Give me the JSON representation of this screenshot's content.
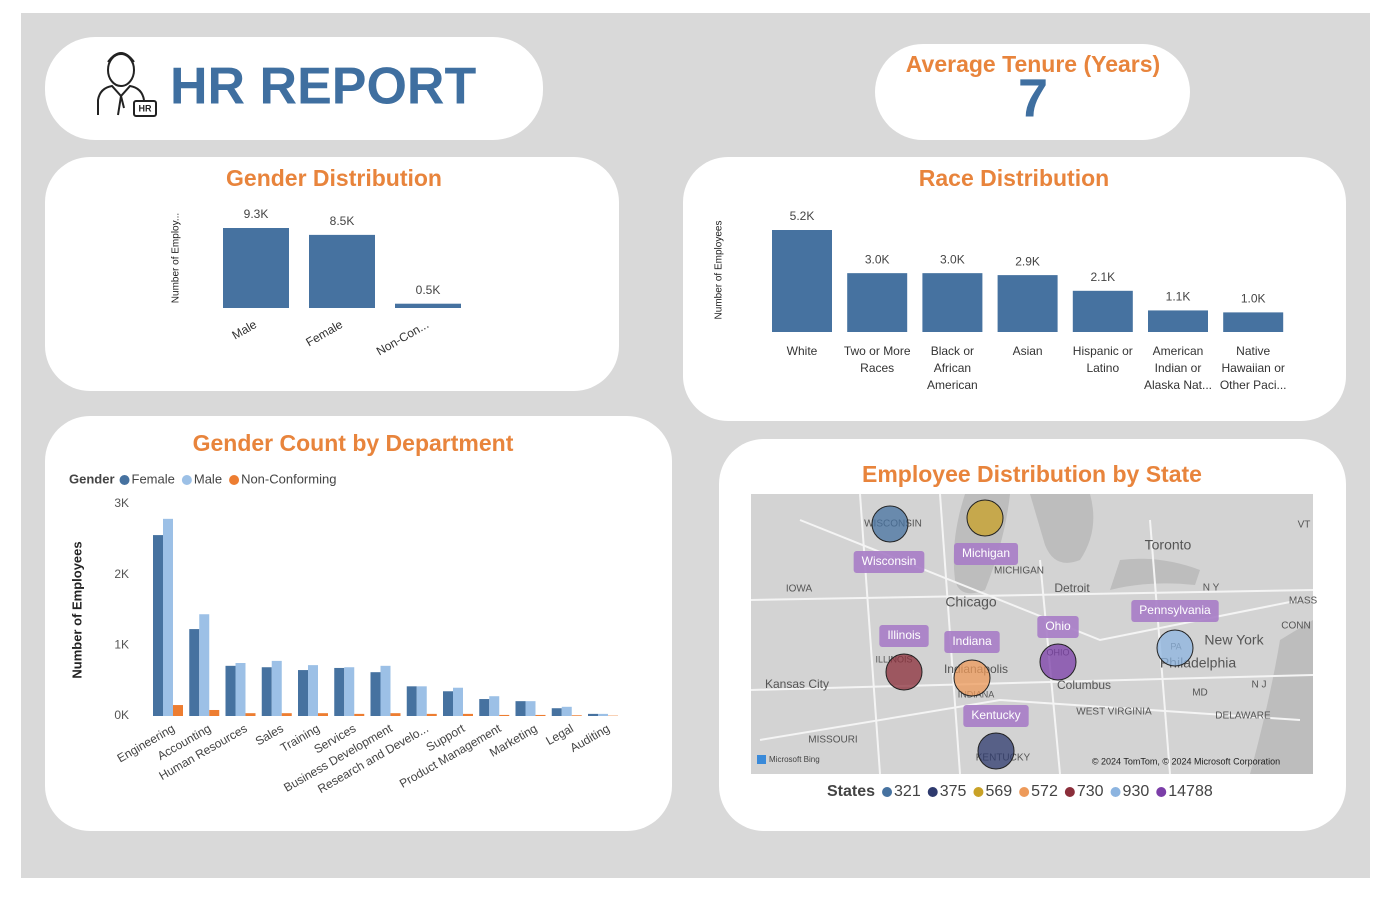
{
  "header": {
    "title": "HR REPORT",
    "badge": "HR"
  },
  "kpi": {
    "label": "Average Tenure (Years)",
    "value": 7
  },
  "chart_data": [
    {
      "type": "bar",
      "title": "Gender Distribution",
      "y_label": "Number of Employ...",
      "categories": [
        "Male",
        "Female",
        "Non-Con..."
      ],
      "values": [
        9300,
        8500,
        500
      ],
      "value_labels": [
        "9.3K",
        "8.5K",
        "0.5K"
      ],
      "color": "#4672a0"
    },
    {
      "type": "bar",
      "title": "Race Distribution",
      "y_label": "Number of Employees",
      "categories": [
        "White",
        "Two or More Races",
        "Black or African American",
        "Asian",
        "Hispanic or Latino",
        "American Indian or Alaska Nat...",
        "Native Hawaiian or Other Paci..."
      ],
      "values": [
        5200,
        3000,
        3000,
        2900,
        2100,
        1100,
        1000
      ],
      "value_labels": [
        "5.2K",
        "3.0K",
        "3.0K",
        "2.9K",
        "2.1K",
        "1.1K",
        "1.0K"
      ],
      "color": "#4672a0"
    },
    {
      "type": "grouped_bar",
      "title": "Gender Count by Department",
      "y_label": "Number of Employees",
      "legend_title": "Gender",
      "categories": [
        "Engineering",
        "Accounting",
        "Human Resources",
        "Sales",
        "Training",
        "Services",
        "Business Development",
        "Research and Develo...",
        "Support",
        "Product Management",
        "Marketing",
        "Legal",
        "Auditing"
      ],
      "series": [
        {
          "name": "Female",
          "color": "#4672a0",
          "values": [
            2560,
            1230,
            710,
            690,
            650,
            680,
            620,
            420,
            350,
            240,
            210,
            110,
            30
          ]
        },
        {
          "name": "Male",
          "color": "#9cc0e6",
          "values": [
            2790,
            1440,
            750,
            780,
            720,
            690,
            710,
            420,
            400,
            280,
            210,
            130,
            30
          ]
        },
        {
          "name": "Non-Conforming",
          "color": "#ed7d31",
          "values": [
            155,
            85,
            40,
            40,
            40,
            30,
            40,
            30,
            30,
            15,
            15,
            10,
            5
          ]
        }
      ],
      "ylim": [
        0,
        3000
      ],
      "yticks": [
        {
          "value": 0,
          "label": "0K"
        },
        {
          "value": 1000,
          "label": "1K"
        },
        {
          "value": 2000,
          "label": "2K"
        },
        {
          "value": 3000,
          "label": "3K"
        }
      ]
    },
    {
      "type": "bubble_map",
      "title": "Employee Distribution by State",
      "legend_title": "States",
      "categories": [
        "Wisconsin",
        "Kentucky",
        "Michigan",
        "Indiana",
        "Illinois",
        "Pennsylvania",
        "Ohio"
      ],
      "values": [
        321,
        375,
        569,
        572,
        730,
        930,
        14788
      ],
      "colors": [
        "#4672a0",
        "#2e3a6e",
        "#c9a227",
        "#ed9a5a",
        "#8b2e3a",
        "#8cb4e0",
        "#7b3ea8"
      ],
      "map_labels": [
        "Toronto",
        "Chicago",
        "Detroit",
        "New York",
        "Philadelphia",
        "Columbus",
        "Kansas City",
        "IOWA",
        "MICHIGAN",
        "WISCONSIN",
        "ILLINOIS",
        "INDIANA",
        "OHIO",
        "KENTUCKY",
        "MISSOURI",
        "WEST VIRGINIA",
        "DELAWARE",
        "Indianapolis",
        "PA",
        "N Y",
        "MD",
        "N J",
        "VT",
        "MASS",
        "CONN"
      ],
      "provider": "Microsoft Bing",
      "attribution": "© 2024 TomTom, © 2024 Microsoft Corporation"
    }
  ]
}
